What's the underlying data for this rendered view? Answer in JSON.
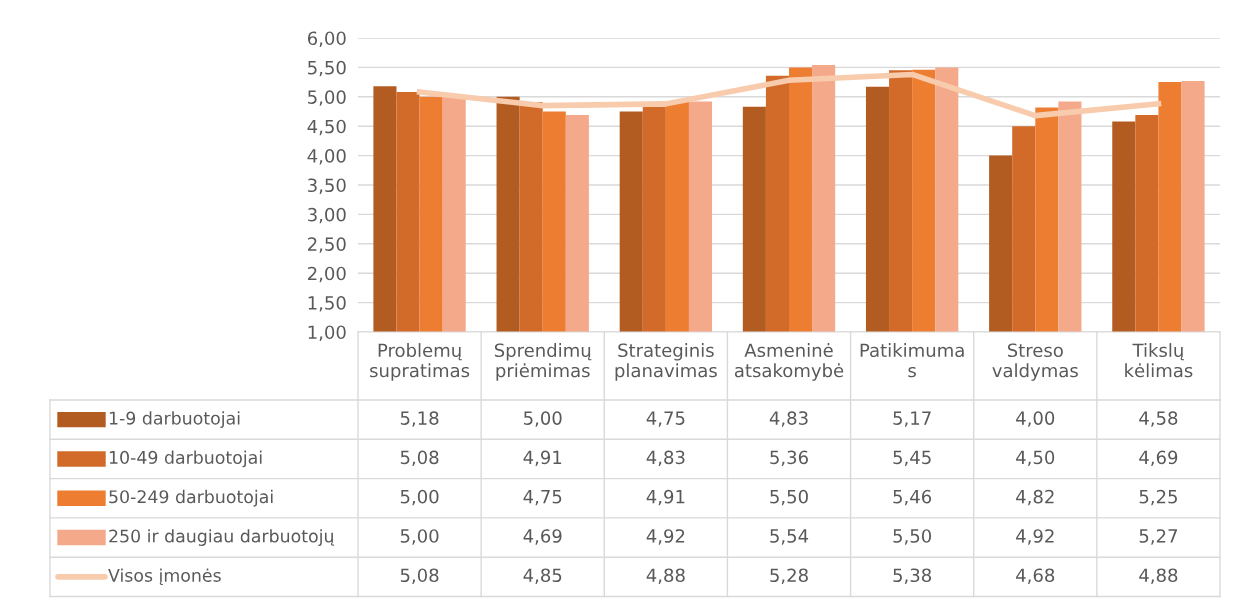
{
  "chart_data": {
    "type": "bar",
    "categories": [
      "Problemų\nsupratimas",
      "Sprendimų\npriėmimas",
      "Strateginis\nplanavimas",
      "Asmeninė\natsakomybė",
      "Patikimuma\ns",
      "Streso\nvaldymas",
      "Tikslų\nkėlimas"
    ],
    "series": [
      {
        "name": "1-9 darbuotojai",
        "color": "#b35c22",
        "values": [
          5.18,
          5.0,
          4.75,
          4.83,
          5.17,
          4.0,
          4.58
        ],
        "value_labels": [
          "5,18",
          "5,00",
          "4,75",
          "4,83",
          "5,17",
          "4,00",
          "4,58"
        ]
      },
      {
        "name": "10-49 darbuotojai",
        "color": "#d26b2a",
        "values": [
          5.08,
          4.91,
          4.83,
          5.36,
          5.45,
          4.5,
          4.69
        ],
        "value_labels": [
          "5,08",
          "4,91",
          "4,83",
          "5,36",
          "5,45",
          "4,50",
          "4,69"
        ]
      },
      {
        "name": "50-249 darbuotojai",
        "color": "#ed7d31",
        "values": [
          5.0,
          4.75,
          4.91,
          5.5,
          5.46,
          4.82,
          5.25
        ],
        "value_labels": [
          "5,00",
          "4,75",
          "4,91",
          "5,50",
          "5,46",
          "4,82",
          "5,25"
        ]
      },
      {
        "name": "250 ir daugiau darbuotojų",
        "color": "#f4a98a",
        "values": [
          5.0,
          4.69,
          4.92,
          5.54,
          5.5,
          4.92,
          5.27
        ],
        "value_labels": [
          "5,00",
          "4,69",
          "4,92",
          "5,54",
          "5,50",
          "4,92",
          "5,27"
        ]
      },
      {
        "name": "Visos įmonės",
        "type": "line",
        "color": "#f8cbad",
        "values": [
          5.08,
          4.85,
          4.88,
          5.28,
          5.38,
          4.68,
          4.88
        ],
        "value_labels": [
          "5,08",
          "4,85",
          "4,88",
          "5,28",
          "5,38",
          "4,68",
          "4,88"
        ]
      }
    ],
    "ylim": [
      1,
      6
    ],
    "yticks": [
      {
        "value": 1,
        "label": "1,00"
      },
      {
        "value": 1.5,
        "label": "1,50"
      },
      {
        "value": 2,
        "label": "2,00"
      },
      {
        "value": 2.5,
        "label": "2,50"
      },
      {
        "value": 3,
        "label": "3,00"
      },
      {
        "value": 3.5,
        "label": "3,50"
      },
      {
        "value": 4,
        "label": "4,00"
      },
      {
        "value": 4.5,
        "label": "4,50"
      },
      {
        "value": 5,
        "label": "5,00"
      },
      {
        "value": 5.5,
        "label": "5,50"
      },
      {
        "value": 6,
        "label": "6,00"
      }
    ],
    "grid": "y",
    "legend": "bottom",
    "marker": "none",
    "line_style": "solid"
  }
}
